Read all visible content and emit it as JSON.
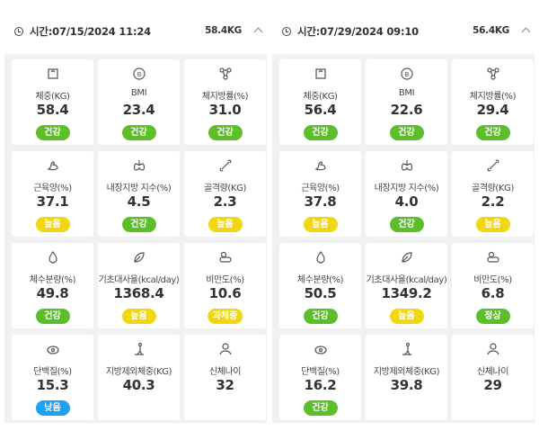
{
  "records": [
    {
      "time_label": "시간:07/15/2024 11:24",
      "weight": "58.4KG",
      "metrics": [
        {
          "icon": "scale-icon",
          "label": "체중(KG)",
          "value": "58.4",
          "badge": "건강",
          "status": "green"
        },
        {
          "icon": "bmi-icon",
          "label": "BMI",
          "value": "23.4",
          "badge": "건강",
          "status": "green"
        },
        {
          "icon": "molecule-icon",
          "label": "체지방률(%)",
          "value": "31.0",
          "badge": "건강",
          "status": "green"
        },
        {
          "icon": "muscle-icon",
          "label": "근육양(%)",
          "value": "37.1",
          "badge": "높음",
          "status": "yellow"
        },
        {
          "icon": "lungs-icon",
          "label": "내장지방 지수(%)",
          "value": "4.5",
          "badge": "건강",
          "status": "green"
        },
        {
          "icon": "bone-icon",
          "label": "골격량(KG)",
          "value": "2.3",
          "badge": "높음",
          "status": "yellow"
        },
        {
          "icon": "water-drop-icon",
          "label": "체수분량(%)",
          "value": "49.8",
          "badge": "건강",
          "status": "green"
        },
        {
          "icon": "leaf-icon",
          "label": "기초대사율(kcal/day)",
          "value": "1368.4",
          "badge": "높음",
          "status": "yellow"
        },
        {
          "icon": "pill-icon",
          "label": "비만도(%)",
          "value": "10.6",
          "badge": "과체중",
          "status": "yellow"
        },
        {
          "icon": "egg-icon",
          "label": "단백질(%)",
          "value": "15.3",
          "badge": "낮음",
          "status": "blue"
        },
        {
          "icon": "body-figure-icon",
          "label": "지방제외체중(KG)",
          "value": "40.3",
          "badge": "",
          "status": ""
        },
        {
          "icon": "person-icon",
          "label": "신체나이",
          "value": "32",
          "badge": "",
          "status": ""
        }
      ]
    },
    {
      "time_label": "시간:07/29/2024 09:10",
      "weight": "56.4KG",
      "metrics": [
        {
          "icon": "scale-icon",
          "label": "체중(KG)",
          "value": "56.4",
          "badge": "건강",
          "status": "green"
        },
        {
          "icon": "bmi-icon",
          "label": "BMI",
          "value": "22.6",
          "badge": "건강",
          "status": "green"
        },
        {
          "icon": "molecule-icon",
          "label": "체지방률(%)",
          "value": "29.4",
          "badge": "건강",
          "status": "green"
        },
        {
          "icon": "muscle-icon",
          "label": "근육양(%)",
          "value": "37.8",
          "badge": "높음",
          "status": "yellow"
        },
        {
          "icon": "lungs-icon",
          "label": "내장지방 지수(%)",
          "value": "4.0",
          "badge": "건강",
          "status": "green"
        },
        {
          "icon": "bone-icon",
          "label": "골격량(KG)",
          "value": "2.2",
          "badge": "높음",
          "status": "yellow"
        },
        {
          "icon": "water-drop-icon",
          "label": "체수분량(%)",
          "value": "50.5",
          "badge": "건강",
          "status": "green"
        },
        {
          "icon": "leaf-icon",
          "label": "기초대사율(kcal/day)",
          "value": "1349.2",
          "badge": "높음",
          "status": "yellow"
        },
        {
          "icon": "pill-icon",
          "label": "비만도(%)",
          "value": "6.8",
          "badge": "정상",
          "status": "green"
        },
        {
          "icon": "egg-icon",
          "label": "단백질(%)",
          "value": "16.2",
          "badge": "건강",
          "status": "green"
        },
        {
          "icon": "body-figure-icon",
          "label": "지방제외체중(KG)",
          "value": "39.8",
          "badge": "",
          "status": ""
        },
        {
          "icon": "person-icon",
          "label": "신체나이",
          "value": "29",
          "badge": "",
          "status": ""
        }
      ]
    }
  ],
  "colors": {
    "green": "#5cbf2a",
    "yellow": "#f2d60f",
    "blue": "#1ea1f5"
  }
}
